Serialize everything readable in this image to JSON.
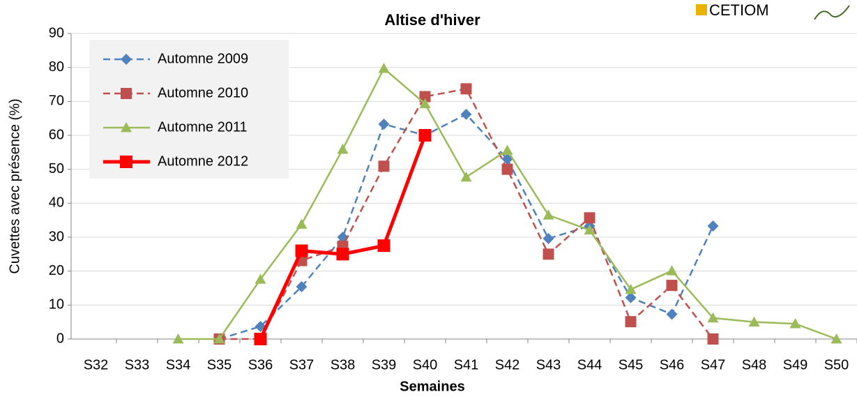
{
  "chart_data": {
    "type": "line",
    "title": "Altise d'hiver",
    "xlabel": "Semaines",
    "ylabel": "Cuvettes avec présence (%)",
    "logo": "CETIOM",
    "categories": [
      "S32",
      "S33",
      "S34",
      "S35",
      "S36",
      "S37",
      "S38",
      "S39",
      "S40",
      "S41",
      "S42",
      "S43",
      "S44",
      "S45",
      "S46",
      "S47",
      "S48",
      "S49",
      "S50"
    ],
    "ylim": [
      0,
      90
    ],
    "yticks": [
      0,
      10,
      20,
      30,
      40,
      50,
      60,
      70,
      80,
      90
    ],
    "grid": true,
    "legend": "upper left",
    "series": [
      {
        "name": "Automne 2009",
        "color": "#4f81bd",
        "dashed": true,
        "marker": "diamond",
        "line_width": 2.5,
        "values": [
          null,
          null,
          null,
          0,
          3.7,
          15.4,
          30,
          63.3,
          60,
          66.2,
          53,
          29.6,
          33.3,
          12.2,
          7.3,
          33.3,
          null,
          null,
          null
        ]
      },
      {
        "name": "Automne 2010",
        "color": "#c0504d",
        "dashed": true,
        "marker": "square",
        "line_width": 2.5,
        "values": [
          null,
          null,
          null,
          0,
          0,
          23.1,
          27.3,
          50.9,
          71.4,
          73.7,
          50,
          25,
          35.7,
          5.1,
          15.8,
          0,
          null,
          null,
          null
        ]
      },
      {
        "name": "Automne 2011",
        "color": "#9bbb59",
        "dashed": false,
        "marker": "triangle",
        "line_width": 2.5,
        "values": [
          null,
          null,
          0,
          0,
          17.6,
          33.8,
          55.9,
          79.7,
          69.3,
          47.7,
          55.6,
          36.5,
          32.1,
          14.6,
          20.1,
          6.2,
          5,
          4.5,
          0
        ]
      },
      {
        "name": "Automne 2012",
        "color": "#ff0000",
        "dashed": false,
        "marker": "square",
        "line_width": 5,
        "values": [
          null,
          null,
          null,
          null,
          0,
          26,
          25,
          27.5,
          60,
          null,
          null,
          null,
          null,
          null,
          null,
          null,
          null,
          null,
          null
        ]
      }
    ]
  }
}
